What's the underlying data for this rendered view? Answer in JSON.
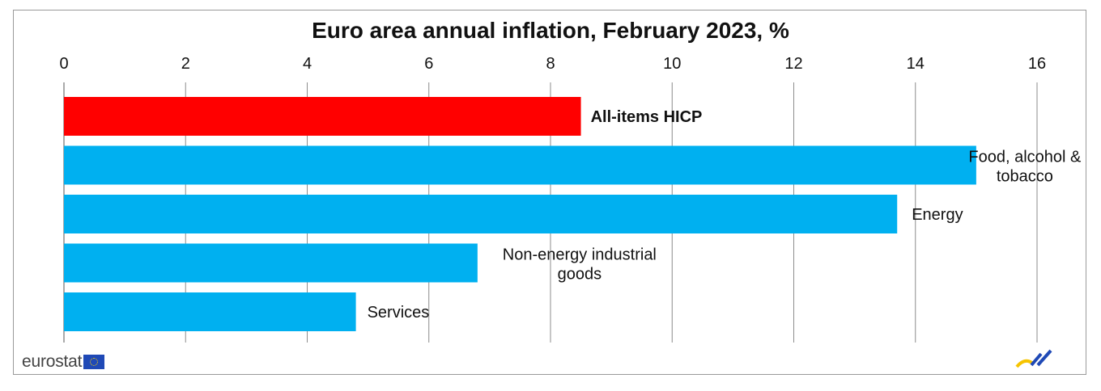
{
  "chart_data": {
    "type": "bar",
    "orientation": "horizontal",
    "title": "Euro area annual inflation, February 2023, %",
    "xlim": [
      0,
      16
    ],
    "xticks": [
      "0",
      "2",
      "4",
      "6",
      "8",
      "10",
      "12",
      "14",
      "16"
    ],
    "axis_position": "top",
    "grid": true,
    "categories": [
      "All-items HICP",
      "Food, alcohol & tobacco",
      "Energy",
      "Non-energy industrial goods",
      "Services"
    ],
    "label_lines": [
      [
        "All-items HICP"
      ],
      [
        "Food, alcohol &",
        "tobacco"
      ],
      [
        "Energy"
      ],
      [
        "Non-energy industrial",
        "goods"
      ],
      [
        "Services"
      ]
    ],
    "values": [
      8.5,
      15.0,
      13.7,
      6.8,
      4.8
    ],
    "colors": [
      "#ff0000",
      "#00b0f0",
      "#00b0f0",
      "#00b0f0",
      "#00b0f0"
    ]
  },
  "branding": {
    "logo_text": "eurostat",
    "logo_flag_color": "#1f49b6",
    "mark_icon": "eurostat-mark-icon"
  }
}
